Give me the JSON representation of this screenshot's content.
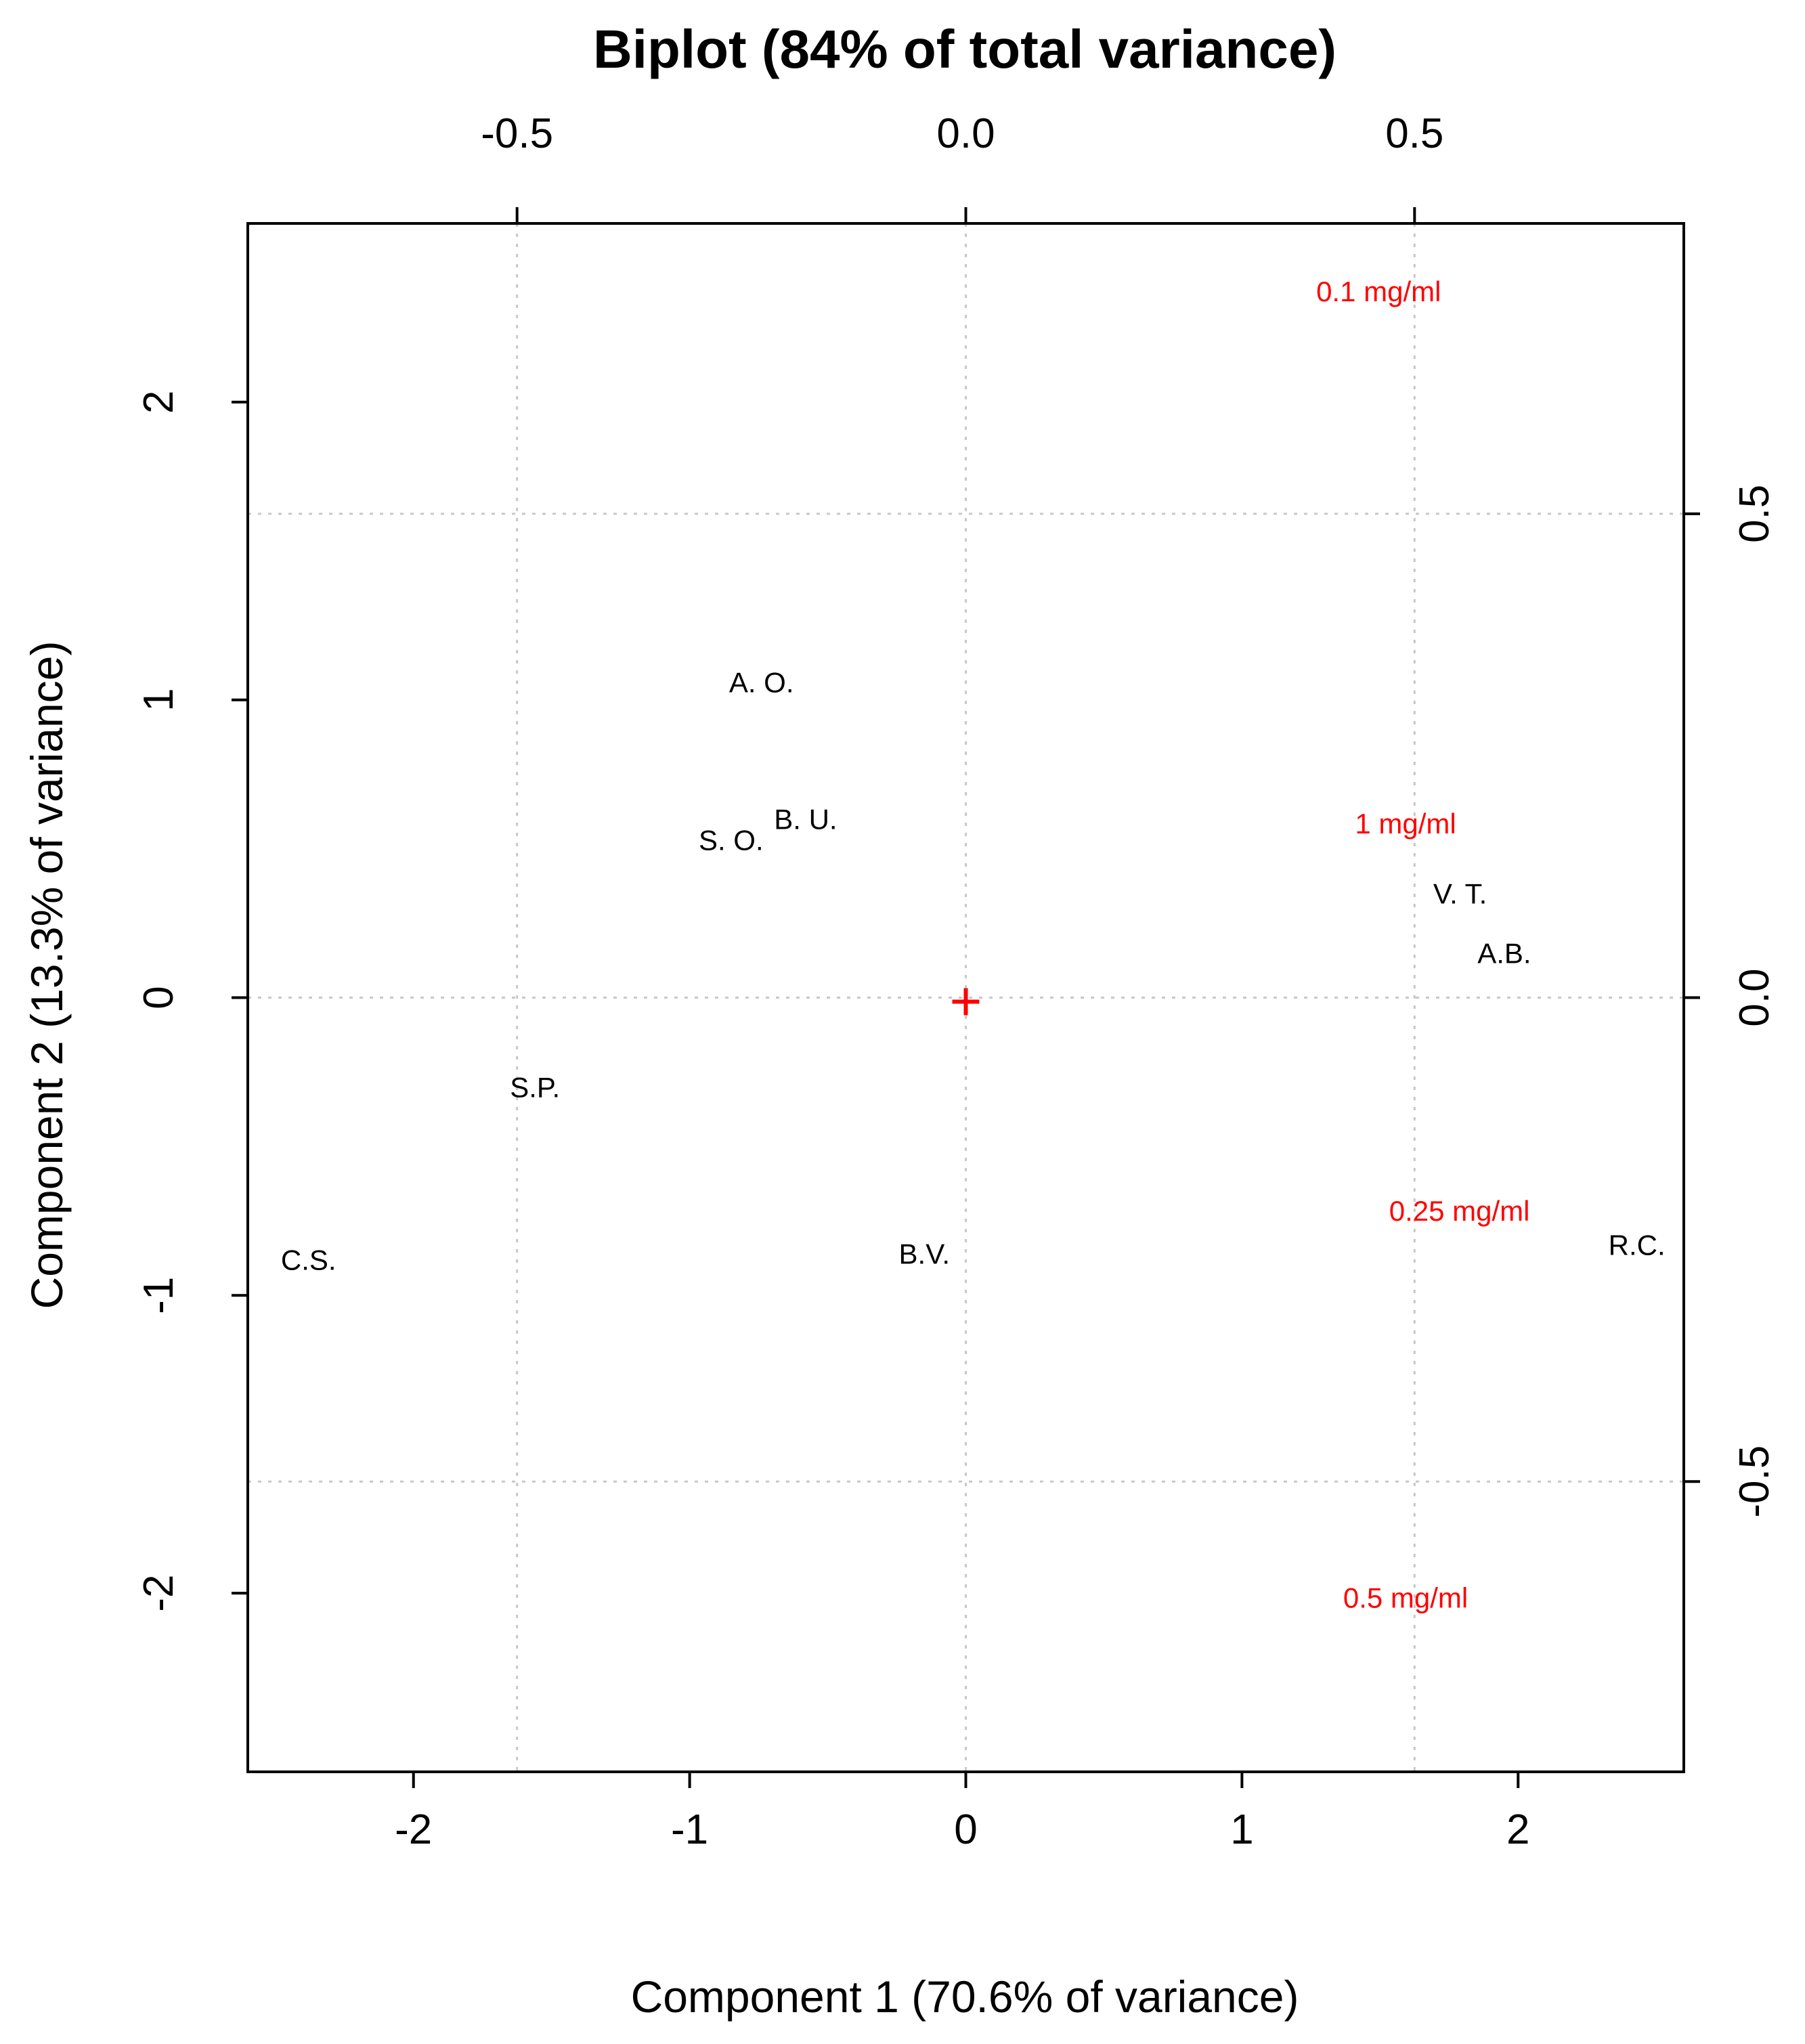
{
  "chart_data": {
    "type": "scatter",
    "title": "Biplot (84% of total variance)",
    "xlabel": "Component 1 (70.6% of variance)",
    "ylabel": "Component 2 (13.3% of variance)",
    "xlim": [
      -2.6,
      2.6
    ],
    "ylim": [
      -2.6,
      2.6
    ],
    "secondary_xlim": [
      -0.8,
      0.8
    ],
    "secondary_ylim": [
      -0.8,
      0.8
    ],
    "x_ticks": [
      -2,
      -1,
      0,
      1,
      2
    ],
    "x_tick_labels": [
      "-2",
      "-1",
      "0",
      "1",
      "2"
    ],
    "y_ticks": [
      -2,
      -1,
      0,
      1,
      2
    ],
    "y_tick_labels": [
      "-2",
      "-1",
      "0",
      "1",
      "2"
    ],
    "top_ticks": [
      -0.5,
      0.0,
      0.5
    ],
    "top_tick_labels": [
      "-0.5",
      "0.0",
      "0.5"
    ],
    "right_ticks": [
      -0.5,
      0.0,
      0.5
    ],
    "right_tick_labels": [
      "-0.5",
      "0.0",
      "0.5"
    ],
    "grid": true,
    "observations": [
      {
        "label": "A. O.",
        "x": -0.74,
        "y": 1.06
      },
      {
        "label": "B. U.",
        "x": -0.58,
        "y": 0.6
      },
      {
        "label": "S. O.",
        "x": -0.85,
        "y": 0.53
      },
      {
        "label": "S.P.",
        "x": -1.56,
        "y": -0.3
      },
      {
        "label": "C.S.",
        "x": -2.38,
        "y": -0.88
      },
      {
        "label": "B.V.",
        "x": -0.15,
        "y": -0.86
      },
      {
        "label": "V. T.",
        "x": 1.79,
        "y": 0.35
      },
      {
        "label": "A.B.",
        "x": 1.95,
        "y": 0.15
      },
      {
        "label": "R.C.",
        "x": 2.43,
        "y": -0.83
      }
    ],
    "variables": [
      {
        "label": "0.1 mg/ml",
        "x": 0.46,
        "y": 0.73
      },
      {
        "label": "1 mg/ml",
        "x": 0.49,
        "y": 0.18
      },
      {
        "label": "0.25 mg/ml",
        "x": 0.55,
        "y": -0.22
      },
      {
        "label": "0.5 mg/ml",
        "x": 0.49,
        "y": -0.62
      }
    ],
    "origin_marker": {
      "x": 0,
      "y": 0,
      "symbol": "+",
      "color": "#ff0000"
    },
    "colors": {
      "observations": "#000000",
      "variables": "#ff0000",
      "grid": "#c8c8c8"
    }
  }
}
